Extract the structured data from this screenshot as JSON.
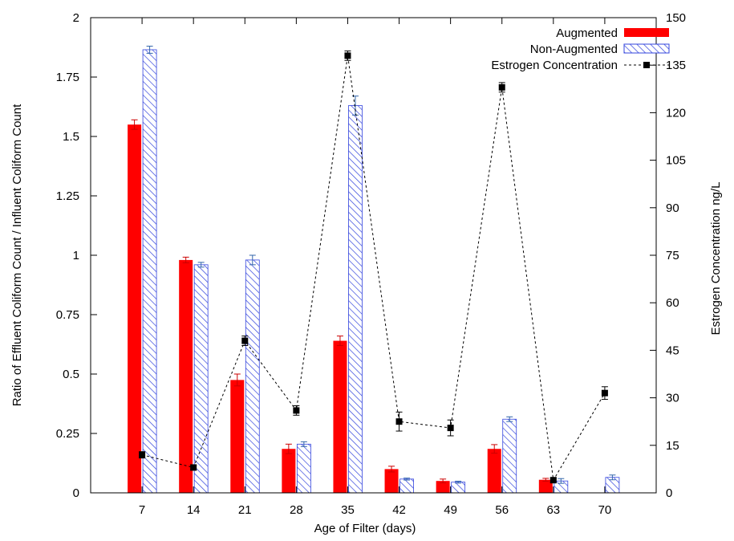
{
  "chart_data": {
    "type": "bar",
    "xlabel": "Age of Filter (days)",
    "ylabel": "Ratio of Effluent Coliform Count / Influent Coliform Count",
    "y2label": "Estrogen Concentration ng/L",
    "categories": [
      "7",
      "14",
      "21",
      "28",
      "35",
      "42",
      "49",
      "56",
      "63",
      "70"
    ],
    "ylim": [
      0,
      2
    ],
    "y2lim": [
      0,
      150
    ],
    "yticks": [
      "0",
      "0.25",
      "0.5",
      "0.75",
      "1",
      "1.25",
      "1.5",
      "1.75",
      "2"
    ],
    "y2ticks": [
      "0",
      "15",
      "30",
      "45",
      "60",
      "75",
      "90",
      "105",
      "120",
      "135",
      "150"
    ],
    "legend_position": "top-right",
    "grid": false,
    "series": [
      {
        "name": "Augmented",
        "kind": "bar",
        "color": "#ff0000",
        "values": [
          1.55,
          0.98,
          0.475,
          0.185,
          0.64,
          0.1,
          0.05,
          0.185,
          0.055,
          0
        ],
        "errors": [
          0.02,
          0.012,
          0.025,
          0.02,
          0.02,
          0.012,
          0.008,
          0.018,
          0.006,
          0
        ]
      },
      {
        "name": "Non-Augmented",
        "kind": "bar-hatched",
        "color": "#3344dd",
        "values": [
          1.865,
          0.96,
          0.98,
          0.205,
          1.63,
          0.058,
          0.045,
          0.31,
          0.05,
          0.065
        ],
        "errors": [
          0.015,
          0.01,
          0.02,
          0.01,
          0.04,
          0.004,
          0.004,
          0.01,
          0.01,
          0.01
        ]
      },
      {
        "name": "Estrogen Concentration",
        "kind": "line-dashed",
        "axis": "y2",
        "color": "#000000",
        "x": [
          "7",
          "14",
          "21",
          "28",
          "35",
          "42",
          "49",
          "56",
          "63",
          "70"
        ],
        "values": [
          12,
          8,
          48,
          26,
          138,
          22.5,
          20.5,
          128,
          4,
          31.5
        ],
        "errors": [
          1,
          0.8,
          1.5,
          1.5,
          1.5,
          3,
          2.5,
          1.5,
          0.6,
          2
        ]
      }
    ]
  }
}
